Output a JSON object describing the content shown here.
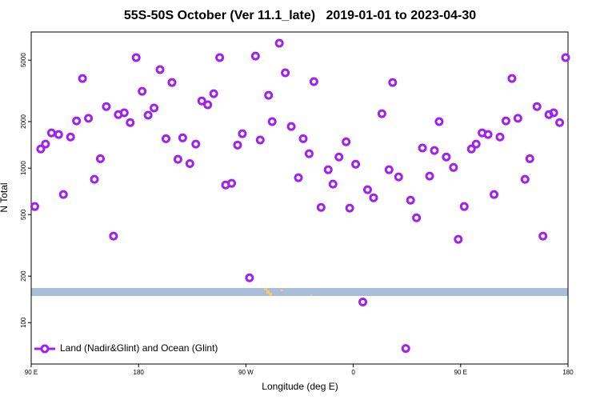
{
  "chart_data": {
    "type": "scatter",
    "title": "55S-50S October (Ver 11.1_late)   2019-01-01 to 2023-04-30",
    "x_label": "Longitude (deg E)",
    "y_label": "N Total",
    "log_y": true,
    "legend": "bottomleft",
    "xlim": [
      -270,
      180
    ],
    "xticks": [
      {
        "value": -270,
        "label": "90 E"
      },
      {
        "value": -180,
        "label": "180"
      },
      {
        "value": -90,
        "label": "90 W"
      },
      0,
      {
        "value": 90,
        "label": "90 E"
      },
      180
    ],
    "ylim": [
      54,
      7600
    ],
    "yticks": [
      100,
      200,
      500,
      1000,
      2000,
      5000
    ],
    "series": [
      {
        "name": "Land (Nadir&Glint) and Ocean (Glint)",
        "color": "#a020f0",
        "x": [
          -267,
          -262,
          -258,
          -253,
          -247,
          -243,
          -237,
          -232,
          -227,
          -222,
          -217,
          -212,
          -207,
          -201,
          -197,
          -192,
          -187,
          -182,
          -177,
          -172,
          -167,
          -162,
          -157,
          -152,
          -147,
          -143,
          -137,
          -132,
          -127,
          -122,
          -117,
          -112,
          -107,
          -102,
          -97,
          -93,
          -87,
          -82,
          -78,
          -71,
          -68,
          -62,
          -57,
          -52,
          -46,
          -42,
          -37,
          -33,
          -27,
          -21,
          -17,
          -12,
          -6,
          -3,
          2,
          8,
          12,
          17,
          24,
          30,
          33,
          38,
          44,
          48,
          53,
          58,
          64,
          68,
          72,
          78,
          84,
          88,
          93,
          99,
          103,
          108,
          113,
          118,
          123,
          128,
          133,
          138,
          144,
          148,
          154,
          159,
          164,
          168,
          173,
          178
        ],
        "values": [
          564,
          1330,
          1430,
          1690,
          1650,
          675,
          1590,
          2020,
          3800,
          2100,
          846,
          1150,
          2500,
          363,
          2220,
          2280,
          1970,
          5190,
          3140,
          2200,
          2450,
          4340,
          1550,
          3580,
          1140,
          1570,
          1070,
          1430,
          2720,
          2570,
          3030,
          5190,
          778,
          797,
          1410,
          1670,
          195,
          5310,
          1520,
          2960,
          2000,
          6430,
          4140,
          1860,
          867,
          1550,
          1240,
          3630,
          557,
          976,
          788,
          1180,
          1480,
          551,
          1060,
          136,
          725,
          643,
          2250,
          976,
          3580,
          877,
          68,
          620,
          477,
          1350,
          888,
          1300,
          2000,
          1180,
          1010,
          346,
          564,
          1330,
          1430,
          1690,
          1650,
          675,
          1590,
          2020,
          3800,
          2100,
          846,
          1150,
          2500,
          363,
          2220,
          2280,
          1970,
          5190
        ]
      }
    ]
  }
}
